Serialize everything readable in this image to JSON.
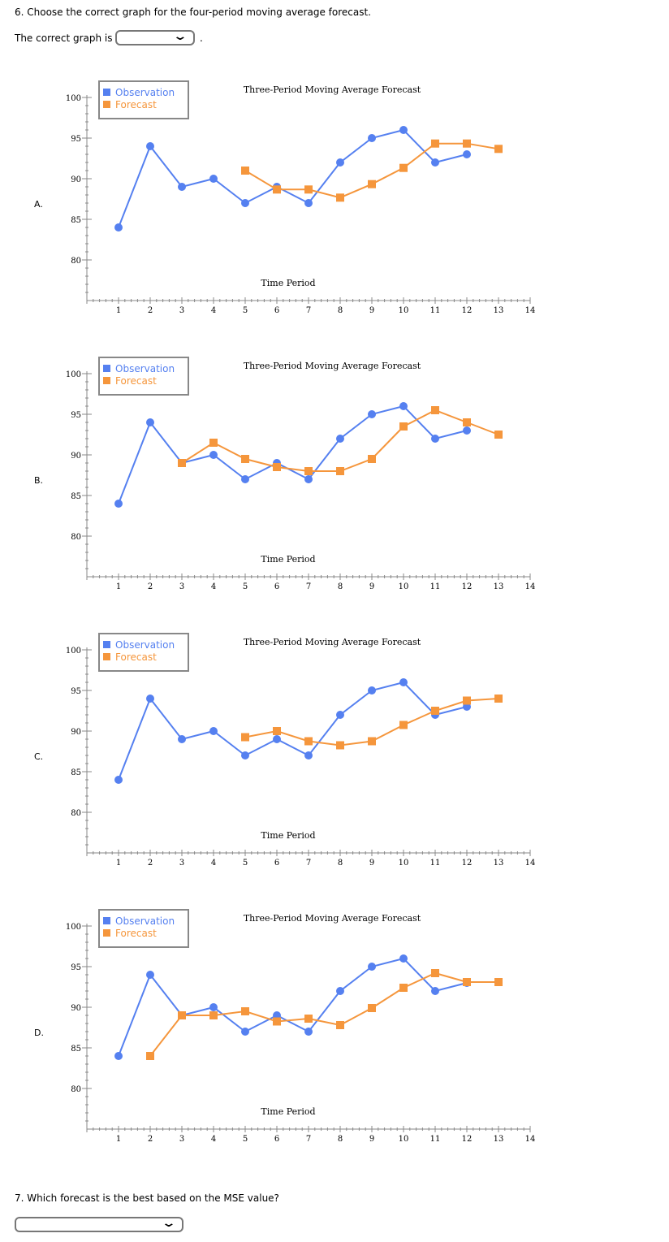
{
  "q6": {
    "question": "6. Choose the correct graph for the four-period moving average forecast.",
    "prompt": "The correct graph is",
    "after": ".",
    "selected": ""
  },
  "q7": {
    "question": "7. Which forecast is the best based on the MSE value?",
    "selected": ""
  },
  "colors": {
    "observation": "#5580f0",
    "forecast": "#f5963c"
  },
  "chart_data": [
    {
      "label": "A.",
      "type": "line",
      "title": "Three-Period Moving Average Forecast",
      "xlabel": "Time Period",
      "ylabel": "",
      "xlim": [
        0,
        14
      ],
      "ylim": [
        75,
        100
      ],
      "x_ticks": [
        1,
        2,
        3,
        4,
        5,
        6,
        7,
        8,
        9,
        10,
        11,
        12,
        13,
        14
      ],
      "y_ticks": [
        80,
        85,
        90,
        95,
        100
      ],
      "legend": "top-left",
      "series": [
        {
          "name": "Observation",
          "x": [
            1,
            2,
            3,
            4,
            5,
            6,
            7,
            8,
            9,
            10,
            11,
            12
          ],
          "values": [
            84,
            94,
            89,
            90,
            87,
            89,
            87,
            92,
            95,
            96,
            92,
            93
          ]
        },
        {
          "name": "Forecast",
          "x": [
            5,
            6,
            7,
            8,
            9,
            10,
            11,
            12,
            13
          ],
          "values": [
            91,
            88.67,
            88.67,
            87.67,
            89.33,
            91.33,
            94.33,
            94.33,
            93.67
          ]
        }
      ]
    },
    {
      "label": "B.",
      "type": "line",
      "title": "Three-Period Moving Average Forecast",
      "xlabel": "Time Period",
      "ylabel": "",
      "xlim": [
        0,
        14
      ],
      "ylim": [
        75,
        100
      ],
      "x_ticks": [
        1,
        2,
        3,
        4,
        5,
        6,
        7,
        8,
        9,
        10,
        11,
        12,
        13,
        14
      ],
      "y_ticks": [
        80,
        85,
        90,
        95,
        100
      ],
      "legend": "top-left",
      "series": [
        {
          "name": "Observation",
          "x": [
            1,
            2,
            3,
            4,
            5,
            6,
            7,
            8,
            9,
            10,
            11,
            12
          ],
          "values": [
            84,
            94,
            89,
            90,
            87,
            89,
            87,
            92,
            95,
            96,
            92,
            93
          ]
        },
        {
          "name": "Forecast",
          "x": [
            3,
            4,
            5,
            6,
            7,
            8,
            9,
            10,
            11,
            12,
            13
          ],
          "values": [
            89,
            91.5,
            89.5,
            88.5,
            88,
            88,
            89.5,
            93.5,
            95.5,
            94,
            92.5
          ]
        }
      ]
    },
    {
      "label": "C.",
      "type": "line",
      "title": "Three-Period Moving Average Forecast",
      "xlabel": "Time Period",
      "ylabel": "",
      "xlim": [
        0,
        14
      ],
      "ylim": [
        75,
        100
      ],
      "x_ticks": [
        1,
        2,
        3,
        4,
        5,
        6,
        7,
        8,
        9,
        10,
        11,
        12,
        13,
        14
      ],
      "y_ticks": [
        80,
        85,
        90,
        95,
        100
      ],
      "legend": "top-left",
      "series": [
        {
          "name": "Observation",
          "x": [
            1,
            2,
            3,
            4,
            5,
            6,
            7,
            8,
            9,
            10,
            11,
            12
          ],
          "values": [
            84,
            94,
            89,
            90,
            87,
            89,
            87,
            92,
            95,
            96,
            92,
            93
          ]
        },
        {
          "name": "Forecast",
          "x": [
            5,
            6,
            7,
            8,
            9,
            10,
            11,
            12,
            13
          ],
          "values": [
            89.25,
            90,
            88.75,
            88.25,
            88.75,
            90.75,
            92.5,
            93.75,
            94
          ]
        }
      ]
    },
    {
      "label": "D.",
      "type": "line",
      "title": "Three-Period Moving Average Forecast",
      "xlabel": "Time Period",
      "ylabel": "",
      "xlim": [
        0,
        14
      ],
      "ylim": [
        75,
        100
      ],
      "x_ticks": [
        1,
        2,
        3,
        4,
        5,
        6,
        7,
        8,
        9,
        10,
        11,
        12,
        13,
        14
      ],
      "y_ticks": [
        80,
        85,
        90,
        95,
        100
      ],
      "legend": "top-left",
      "series": [
        {
          "name": "Observation",
          "x": [
            1,
            2,
            3,
            4,
            5,
            6,
            7,
            8,
            9,
            10,
            11,
            12
          ],
          "values": [
            84,
            94,
            89,
            90,
            87,
            89,
            87,
            92,
            95,
            96,
            92,
            93
          ]
        },
        {
          "name": "Forecast",
          "x": [
            2,
            3,
            4,
            5,
            6,
            7,
            8,
            9,
            10,
            11,
            12,
            13
          ],
          "values": [
            84,
            89,
            89,
            89.5,
            88.25,
            88.6,
            87.8,
            89.9,
            92.4,
            94.2,
            93.1,
            93.1
          ]
        }
      ]
    }
  ]
}
